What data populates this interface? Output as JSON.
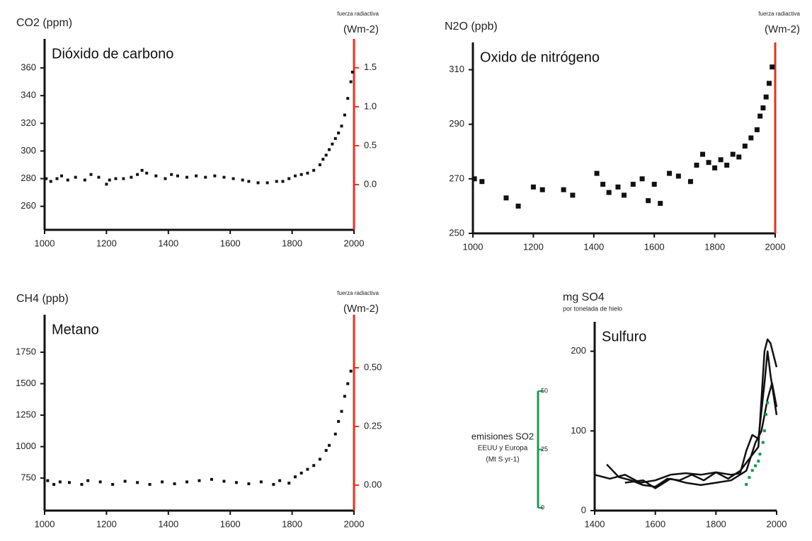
{
  "chart_data": [
    {
      "type": "scatter",
      "title": "Dióxido de carbono",
      "y_label": [
        "CO2 (ppm)"
      ],
      "y2_label": [
        "fuerza radiactiva",
        "(Wm-2)"
      ],
      "y2_color": "#e8311f",
      "xlim": [
        1000,
        2000
      ],
      "xticks": [
        1000,
        1200,
        1400,
        1600,
        1800,
        2000
      ],
      "ylim": [
        243,
        381
      ],
      "yticks": [
        260,
        280,
        300,
        320,
        340,
        360
      ],
      "y2lim": [
        -0.58,
        1.87
      ],
      "y2ticks": [
        {
          "value": 0,
          "label": "0.0"
        },
        {
          "value": 0.5,
          "label": "0.5"
        },
        {
          "value": 1,
          "label": "1.0"
        },
        {
          "value": 1.5,
          "label": "1.5"
        }
      ],
      "series": [
        {
          "color": "#111111",
          "x": [
            1005,
            1020,
            1040,
            1055,
            1075,
            1100,
            1130,
            1150,
            1175,
            1200,
            1210,
            1230,
            1255,
            1280,
            1300,
            1315,
            1330,
            1360,
            1390,
            1410,
            1430,
            1460,
            1490,
            1520,
            1550,
            1580,
            1610,
            1640,
            1660,
            1690,
            1720,
            1750,
            1770,
            1790,
            1810,
            1830,
            1850,
            1870,
            1890,
            1900,
            1910,
            1920,
            1930,
            1940,
            1950,
            1960,
            1970,
            1980,
            1990,
            1995
          ],
          "values": [
            280,
            278,
            280,
            282,
            279,
            281,
            279,
            283,
            281,
            276,
            279,
            280,
            280,
            281,
            283,
            286,
            284,
            282,
            280,
            283,
            282,
            281,
            282,
            281,
            282,
            281,
            280,
            279,
            278,
            277,
            277,
            278,
            278,
            280,
            282,
            283,
            284,
            286,
            290,
            294,
            297,
            301,
            305,
            309,
            313,
            318,
            326,
            338,
            350,
            357
          ]
        }
      ]
    },
    {
      "type": "scatter",
      "title": "Oxido de nitrógeno",
      "y_label": [
        "N2O (ppb)"
      ],
      "y2_label": [
        "fuerza radiactiva",
        "(Wm-2)"
      ],
      "y2_color": "#e8311f",
      "xlim": [
        1000,
        2000
      ],
      "xticks": [
        1000,
        1200,
        1400,
        1600,
        1800,
        2000
      ],
      "ylim": [
        250,
        320
      ],
      "yticks": [
        250,
        270,
        290,
        310
      ],
      "series": [
        {
          "color": "#111111",
          "x": [
            1005,
            1030,
            1110,
            1150,
            1200,
            1230,
            1300,
            1330,
            1410,
            1430,
            1450,
            1480,
            1500,
            1530,
            1560,
            1580,
            1600,
            1620,
            1650,
            1680,
            1720,
            1740,
            1760,
            1780,
            1800,
            1820,
            1840,
            1860,
            1880,
            1900,
            1920,
            1940,
            1950,
            1960,
            1970,
            1980,
            1990
          ],
          "values": [
            270,
            269,
            263,
            260,
            267,
            266,
            266,
            264,
            272,
            268,
            265,
            267,
            264,
            268,
            270,
            262,
            268,
            261,
            272,
            271,
            269,
            275,
            279,
            276,
            274,
            277,
            275,
            279,
            278,
            282,
            285,
            288,
            293,
            296,
            300,
            305,
            311
          ]
        }
      ]
    },
    {
      "type": "scatter",
      "title": "Metano",
      "y_label": [
        "CH4 (ppb)"
      ],
      "y2_label": [
        "fuerza radiactiva",
        "(Wm-2)"
      ],
      "y2_color": "#e8311f",
      "xlim": [
        1000,
        2000
      ],
      "xticks": [
        1000,
        1200,
        1400,
        1600,
        1800,
        2000
      ],
      "ylim": [
        492,
        2048
      ],
      "yticks": [
        750,
        1000,
        1250,
        1500,
        1750
      ],
      "y2lim": [
        -0.108,
        0.726
      ],
      "y2ticks": [
        {
          "value": 0,
          "label": "0.00"
        },
        0.25,
        {
          "value": 0.5,
          "label": "0.50"
        }
      ],
      "series": [
        {
          "color": "#111111",
          "x": [
            1010,
            1030,
            1050,
            1080,
            1120,
            1140,
            1180,
            1220,
            1260,
            1300,
            1340,
            1380,
            1420,
            1460,
            1500,
            1540,
            1580,
            1620,
            1660,
            1700,
            1740,
            1760,
            1790,
            1810,
            1830,
            1850,
            1870,
            1890,
            1910,
            1920,
            1940,
            1950,
            1960,
            1970,
            1980,
            1990
          ],
          "values": [
            730,
            700,
            720,
            715,
            700,
            730,
            720,
            700,
            725,
            715,
            700,
            720,
            705,
            720,
            730,
            740,
            725,
            715,
            705,
            720,
            700,
            730,
            710,
            760,
            790,
            820,
            850,
            900,
            970,
            1010,
            1100,
            1200,
            1280,
            1400,
            1500,
            1600
          ]
        }
      ]
    },
    {
      "type": "line",
      "title": "Sulfuro",
      "y_label": [
        "mg SO4",
        "por tonelada de hielo"
      ],
      "y2_label": [
        "emisiones SO2",
        "EEUU y Europa",
        "(Mt S yr-1)"
      ],
      "y2_color": "#1a9850",
      "xlim": [
        1400,
        2000
      ],
      "xticks": [
        1400,
        1600,
        1800,
        2000
      ],
      "ylim": [
        0,
        237
      ],
      "yticks": [
        0,
        100,
        200
      ],
      "y2lim": [
        -1.2,
        79.7
      ],
      "y2ticks": [
        0,
        25,
        50
      ],
      "series": [
        {
          "color": "#111111",
          "x": [
            1400,
            1450,
            1500,
            1550,
            1600,
            1650,
            1700,
            1750,
            1800,
            1850,
            1880,
            1900,
            1920,
            1940,
            1960,
            1970,
            1980,
            2000
          ],
          "values": [
            45,
            40,
            45,
            35,
            38,
            45,
            47,
            45,
            48,
            45,
            47,
            75,
            95,
            90,
            160,
            200,
            170,
            120
          ]
        },
        {
          "color": "#111111",
          "x": [
            1440,
            1480,
            1520,
            1560,
            1600,
            1640,
            1680,
            1720,
            1760,
            1800,
            1840,
            1880,
            1900,
            1920,
            1940,
            1960,
            1970,
            1980,
            2000
          ],
          "values": [
            58,
            42,
            38,
            32,
            30,
            40,
            38,
            45,
            38,
            48,
            40,
            50,
            60,
            70,
            80,
            200,
            215,
            210,
            180
          ]
        },
        {
          "color": "#111111",
          "x": [
            1500,
            1560,
            1600,
            1650,
            1700,
            1750,
            1800,
            1850,
            1900,
            1930,
            1950,
            1970,
            1985,
            2000
          ],
          "values": [
            35,
            38,
            28,
            40,
            35,
            32,
            35,
            38,
            50,
            85,
            100,
            140,
            160,
            130
          ]
        },
        {
          "color": "#1a9850",
          "type": "scatter",
          "axis": "y2",
          "x": [
            1900,
            1910,
            1920,
            1930,
            1940,
            1945,
            1955,
            1960,
            1965,
            1970
          ],
          "values": [
            10,
            13,
            16,
            18,
            20,
            23,
            28,
            33,
            40,
            45
          ]
        }
      ]
    }
  ]
}
